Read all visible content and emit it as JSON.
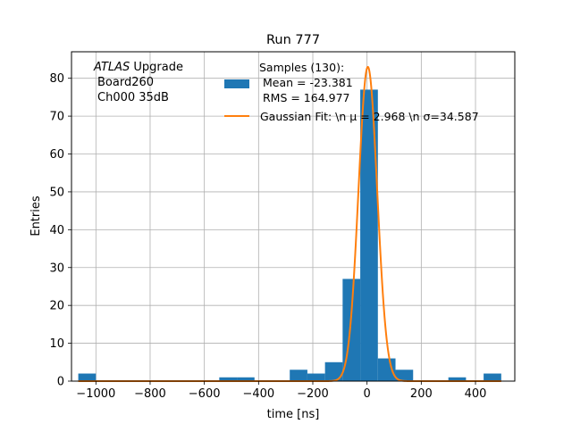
{
  "chart_data": {
    "type": "bar",
    "title": "Run 777",
    "xlabel": "time [ns]",
    "ylabel": "Entries",
    "xlim": [
      -1090,
      545
    ],
    "ylim": [
      0,
      87
    ],
    "grid": true,
    "xticks": [
      -1000,
      -800,
      -600,
      -400,
      -200,
      0,
      200,
      400
    ],
    "xtick_labels": [
      "−1000",
      "−800",
      "−600",
      "−400",
      "−200",
      "0",
      "200",
      "400"
    ],
    "yticks": [
      0,
      10,
      20,
      30,
      40,
      50,
      60,
      70,
      80
    ],
    "ytick_labels": [
      "0",
      "10",
      "20",
      "30",
      "40",
      "50",
      "60",
      "70",
      "80"
    ],
    "annotation": {
      "italic_word": "ATLAS",
      "line1_rest": " Upgrade",
      "line2": "Board260",
      "line3": "Ch000 35dB"
    },
    "legend_placement": "top-center",
    "series": [
      {
        "kind": "histogram",
        "color": "#1f77b4",
        "legend_lines": [
          "Samples (130):",
          " Mean = -23.381",
          " RMS = 164.977"
        ],
        "bins": [
          {
            "x0": -1065,
            "x1": -1000,
            "count": 2
          },
          {
            "x0": -1000,
            "x1": -935,
            "count": 0
          },
          {
            "x0": -935,
            "x1": -870,
            "count": 0
          },
          {
            "x0": -870,
            "x1": -805,
            "count": 0
          },
          {
            "x0": -805,
            "x1": -740,
            "count": 0
          },
          {
            "x0": -740,
            "x1": -675,
            "count": 0
          },
          {
            "x0": -675,
            "x1": -610,
            "count": 0
          },
          {
            "x0": -610,
            "x1": -545,
            "count": 0
          },
          {
            "x0": -545,
            "x1": -480,
            "count": 1
          },
          {
            "x0": -480,
            "x1": -415,
            "count": 1
          },
          {
            "x0": -415,
            "x1": -350,
            "count": 0
          },
          {
            "x0": -350,
            "x1": -285,
            "count": 0
          },
          {
            "x0": -285,
            "x1": -220,
            "count": 3
          },
          {
            "x0": -220,
            "x1": -155,
            "count": 2
          },
          {
            "x0": -155,
            "x1": -90,
            "count": 5
          },
          {
            "x0": -90,
            "x1": -25,
            "count": 27
          },
          {
            "x0": -25,
            "x1": 40,
            "count": 77
          },
          {
            "x0": 40,
            "x1": 105,
            "count": 6
          },
          {
            "x0": 105,
            "x1": 170,
            "count": 3
          },
          {
            "x0": 170,
            "x1": 235,
            "count": 0
          },
          {
            "x0": 235,
            "x1": 300,
            "count": 0
          },
          {
            "x0": 300,
            "x1": 365,
            "count": 1
          },
          {
            "x0": 365,
            "x1": 430,
            "count": 0
          },
          {
            "x0": 430,
            "x1": 495,
            "count": 2
          }
        ]
      },
      {
        "kind": "line",
        "color": "#ff7f0e",
        "legend_text": "Gaussian Fit: \\n μ = 2.968 \\n σ=34.587",
        "function": "gaussian",
        "amplitude": 83,
        "mu": 2.968,
        "sigma": 34.587,
        "x_range": [
          -1065,
          495
        ]
      }
    ]
  }
}
